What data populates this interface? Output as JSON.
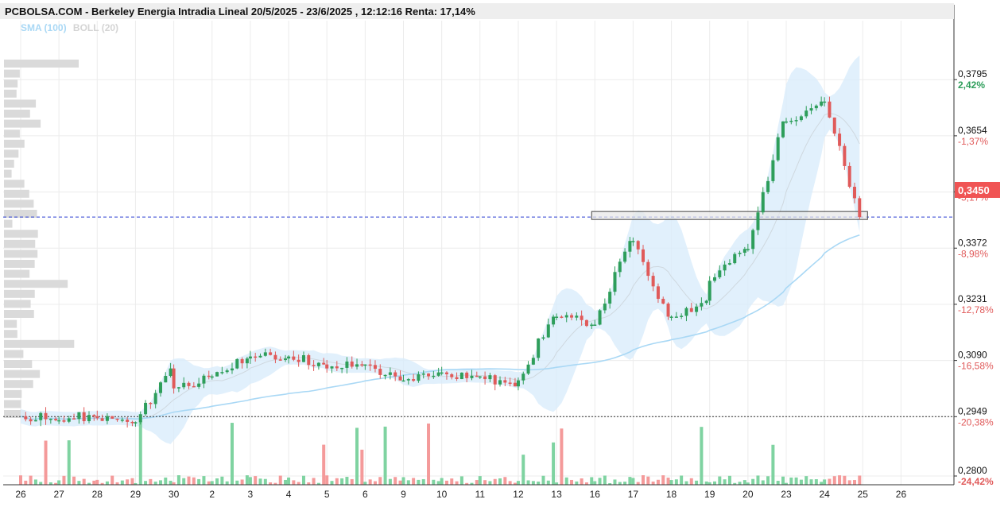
{
  "header": {
    "title": "PCBOLSA.COM - Berkeley Energia Intradia Lineal 20/5/2025 - 23/6/2025 , 12:12:16 Renta: 17,14%",
    "indicators": [
      {
        "label": "SMA (100)",
        "color": "#a9d8f5"
      },
      {
        "label": "BOLL (20)",
        "color": "#d4d4d4"
      }
    ]
  },
  "chart_data": {
    "type": "candlestick",
    "ylim": [
      0.2776,
      0.3884
    ],
    "y_ticks": [
      {
        "price": "0,3795",
        "pct": "2,42%",
        "value": 0.3795,
        "color": "#2e9e5b"
      },
      {
        "price": "0,3654",
        "pct": "-1,37%",
        "value": 0.3654,
        "color": "#e05a5a"
      },
      {
        "price": "0,3513",
        "pct": "-5,17%",
        "value": 0.3513,
        "color": "#e05a5a"
      },
      {
        "price": "0,3372",
        "pct": "-8,98%",
        "value": 0.3372,
        "color": "#e05a5a"
      },
      {
        "price": "0,3231",
        "pct": "-12,78%",
        "value": 0.3231,
        "color": "#e05a5a"
      },
      {
        "price": "0,3090",
        "pct": "-16,58%",
        "value": 0.309,
        "color": "#e05a5a"
      },
      {
        "price": "0,2949",
        "pct": "-20,38%",
        "value": 0.2949,
        "color": "#e05a5a"
      },
      {
        "price": "0,2800",
        "pct": "-24,42%",
        "value": 0.28,
        "color": "#e05a5a"
      }
    ],
    "x_labels": [
      "26",
      "27",
      "28",
      "29",
      "30",
      "2",
      "3",
      "4",
      "5",
      "6",
      "9",
      "10",
      "11",
      "12",
      "13",
      "16",
      "17",
      "18",
      "19",
      "20",
      "23",
      "24",
      "25",
      "26"
    ],
    "last_price": {
      "label": "0,3450",
      "value": 0.345,
      "color": "#f05454"
    },
    "reference_price": 0.2949,
    "resistance_zone": {
      "from_day": 15,
      "to_day": 22,
      "low": 0.3444,
      "high": 0.3464
    },
    "sessions": [
      {
        "day": 0,
        "open": 0.295,
        "close": 0.294
      },
      {
        "day": 1,
        "open": 0.294,
        "close": 0.295
      },
      {
        "day": 2,
        "open": 0.2945,
        "close": 0.2935
      },
      {
        "day": 3,
        "open": 0.2935,
        "close": 0.307
      },
      {
        "day": 4,
        "open": 0.302,
        "close": 0.305
      },
      {
        "day": 5,
        "open": 0.305,
        "close": 0.3095
      },
      {
        "day": 6,
        "open": 0.31,
        "close": 0.3095
      },
      {
        "day": 7,
        "open": 0.31,
        "close": 0.308
      },
      {
        "day": 8,
        "open": 0.307,
        "close": 0.308
      },
      {
        "day": 9,
        "open": 0.308,
        "close": 0.304
      },
      {
        "day": 10,
        "open": 0.304,
        "close": 0.306
      },
      {
        "day": 11,
        "open": 0.306,
        "close": 0.305
      },
      {
        "day": 12,
        "open": 0.305,
        "close": 0.3025
      },
      {
        "day": 13,
        "open": 0.304,
        "close": 0.32
      },
      {
        "day": 14,
        "open": 0.32,
        "close": 0.318
      },
      {
        "day": 15,
        "open": 0.318,
        "close": 0.339
      },
      {
        "day": 16,
        "open": 0.339,
        "close": 0.32
      },
      {
        "day": 17,
        "open": 0.32,
        "close": 0.324
      },
      {
        "day": 18,
        "open": 0.329,
        "close": 0.337
      },
      {
        "day": 19,
        "open": 0.337,
        "close": 0.369
      },
      {
        "day": 20,
        "open": 0.369,
        "close": 0.374
      },
      {
        "day": 21,
        "open": 0.374,
        "close": 0.345
      }
    ]
  }
}
